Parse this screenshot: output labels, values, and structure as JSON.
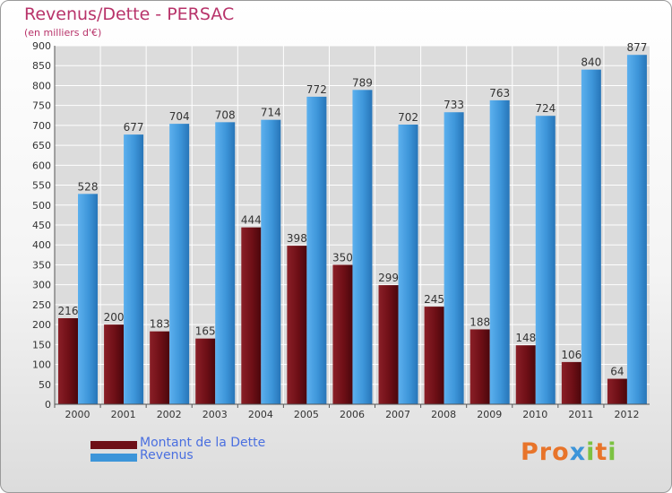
{
  "chart_data": {
    "type": "bar",
    "title": "Revenus/Dette - PERSAC",
    "subtitle": "(en milliers d'€)",
    "xlabel": "",
    "ylabel": "",
    "ylim": [
      0,
      900
    ],
    "ytick_step": 50,
    "grid": true,
    "categories": [
      "2000",
      "2001",
      "2002",
      "2003",
      "2004",
      "2005",
      "2006",
      "2007",
      "2008",
      "2009",
      "2010",
      "2011",
      "2012"
    ],
    "series": [
      {
        "name": "Montant de la Dette",
        "color": "#6e0f16",
        "values": [
          216,
          200,
          183,
          165,
          444,
          398,
          350,
          299,
          245,
          188,
          148,
          106,
          64
        ]
      },
      {
        "name": "Revenus",
        "color": "#3d95d9",
        "values": [
          528,
          677,
          704,
          708,
          714,
          772,
          789,
          702,
          733,
          763,
          724,
          840,
          877
        ]
      }
    ],
    "legend_position": "bottom-left"
  },
  "brand": {
    "logo_text": "Proxiti",
    "letter_colors": [
      "#e8742a",
      "#e8742a",
      "#e8742a",
      "#3d95d9",
      "#7cc242",
      "#e8742a",
      "#7cc242"
    ]
  }
}
